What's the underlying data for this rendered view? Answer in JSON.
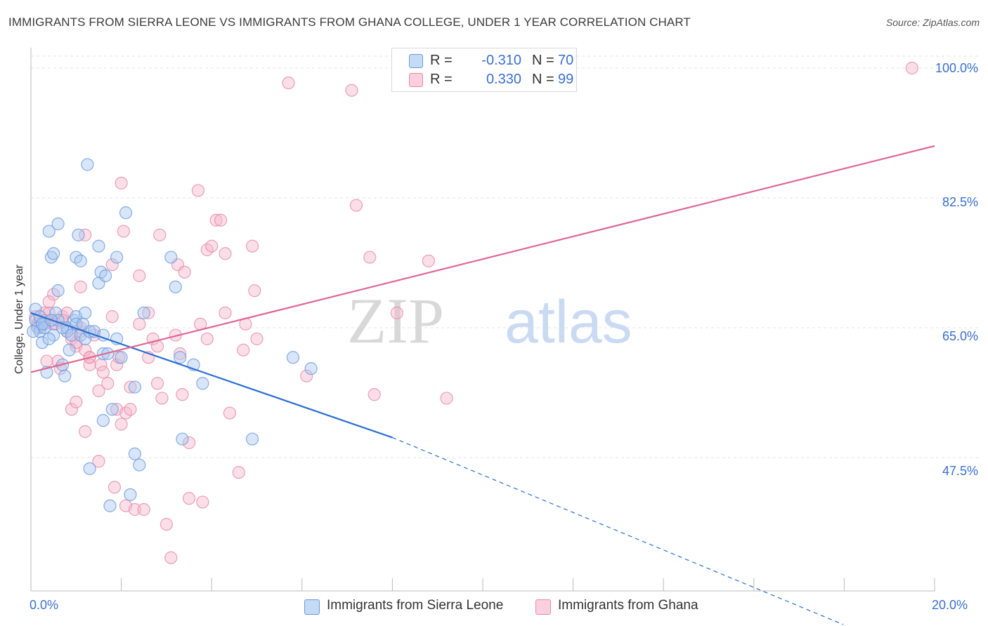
{
  "title": "IMMIGRANTS FROM SIERRA LEONE VS IMMIGRANTS FROM GHANA COLLEGE, UNDER 1 YEAR CORRELATION CHART",
  "source": "Source: ZipAtlas.com",
  "watermark": {
    "zip": "ZIP",
    "atlas": "atlas"
  },
  "legend": {
    "r_label": "R =",
    "n_label": "N =",
    "rows": [
      {
        "r": "-0.310",
        "n": "70",
        "color": "#a8c8f0"
      },
      {
        "r": "0.330",
        "n": "99",
        "color": "#f5b8cc"
      }
    ]
  },
  "chart_data": {
    "type": "scatter",
    "xlabel": "",
    "ylabel": "College, Under 1 year",
    "xlim": [
      0,
      20
    ],
    "ylim": [
      30,
      102
    ],
    "x_tick_labels": [
      "0.0%",
      "20.0%"
    ],
    "y_ticks": [
      47.5,
      65.0,
      82.5,
      100.0
    ],
    "y_tick_labels": [
      "47.5%",
      "65.0%",
      "82.5%",
      "100.0%"
    ],
    "grid": true,
    "series": [
      {
        "name": "Immigrants from Sierra Leone",
        "color": "#6a9be0",
        "fill": "#a8c8f0",
        "line_color": "#2a6fd1",
        "trend": {
          "x0": 0,
          "y0": 67.0,
          "x1": 8.0,
          "y1": 50.2,
          "dash_to_x": 20,
          "dash_to_y": 25.0
        },
        "points": [
          [
            0.1,
            67.5
          ],
          [
            0.1,
            66.0
          ],
          [
            0.15,
            65.0
          ],
          [
            0.2,
            64.5
          ],
          [
            0.25,
            63.0
          ],
          [
            0.3,
            65.5
          ],
          [
            0.35,
            59.0
          ],
          [
            0.4,
            78.0
          ],
          [
            0.45,
            74.5
          ],
          [
            0.5,
            75.0
          ],
          [
            0.5,
            64.0
          ],
          [
            0.55,
            67.0
          ],
          [
            0.6,
            79.0
          ],
          [
            0.6,
            70.0
          ],
          [
            0.7,
            60.0
          ],
          [
            0.75,
            58.5
          ],
          [
            0.8,
            65.0
          ],
          [
            0.8,
            64.5
          ],
          [
            0.85,
            62.0
          ],
          [
            0.9,
            64.0
          ],
          [
            0.95,
            66.0
          ],
          [
            1.0,
            74.5
          ],
          [
            1.0,
            66.5
          ],
          [
            1.0,
            65.5
          ],
          [
            1.05,
            77.5
          ],
          [
            1.1,
            74.0
          ],
          [
            1.1,
            64.0
          ],
          [
            1.2,
            67.0
          ],
          [
            1.2,
            63.5
          ],
          [
            1.25,
            87.0
          ],
          [
            1.3,
            64.5
          ],
          [
            1.3,
            46.0
          ],
          [
            1.4,
            64.5
          ],
          [
            1.5,
            76.0
          ],
          [
            1.5,
            71.0
          ],
          [
            1.55,
            72.5
          ],
          [
            1.6,
            64.0
          ],
          [
            1.6,
            52.5
          ],
          [
            1.6,
            61.5
          ],
          [
            1.65,
            72.0
          ],
          [
            1.7,
            61.5
          ],
          [
            1.75,
            41.0
          ],
          [
            1.8,
            54.0
          ],
          [
            1.9,
            63.5
          ],
          [
            1.9,
            74.5
          ],
          [
            2.0,
            61.0
          ],
          [
            2.1,
            80.5
          ],
          [
            2.2,
            42.5
          ],
          [
            2.3,
            57.0
          ],
          [
            2.3,
            48.0
          ],
          [
            2.4,
            46.5
          ],
          [
            2.5,
            67.0
          ],
          [
            3.1,
            74.5
          ],
          [
            3.2,
            70.5
          ],
          [
            3.3,
            61.0
          ],
          [
            3.35,
            50.0
          ],
          [
            3.6,
            60.0
          ],
          [
            3.8,
            57.5
          ],
          [
            4.9,
            50.0
          ],
          [
            5.8,
            61.0
          ],
          [
            6.2,
            59.5
          ],
          [
            0.2,
            66.5
          ],
          [
            0.3,
            65.0
          ],
          [
            0.4,
            63.5
          ],
          [
            0.6,
            66.0
          ],
          [
            0.7,
            65.0
          ],
          [
            1.15,
            65.5
          ],
          [
            0.05,
            64.5
          ],
          [
            0.25,
            65.5
          ],
          [
            0.45,
            66.0
          ]
        ]
      },
      {
        "name": "Immigrants from Ghana",
        "color": "#e88aa8",
        "fill": "#f5b8cc",
        "line_color": "#e06890",
        "trend": {
          "x0": 0,
          "y0": 59.0,
          "x1": 20,
          "y1": 89.5
        },
        "points": [
          [
            0.1,
            66.5
          ],
          [
            0.15,
            65.5
          ],
          [
            0.2,
            66.0
          ],
          [
            0.3,
            67.0
          ],
          [
            0.35,
            60.5
          ],
          [
            0.4,
            67.0
          ],
          [
            0.45,
            66.0
          ],
          [
            0.5,
            69.5
          ],
          [
            0.6,
            60.5
          ],
          [
            0.65,
            59.5
          ],
          [
            0.7,
            66.5
          ],
          [
            0.8,
            67.0
          ],
          [
            0.9,
            63.5
          ],
          [
            0.9,
            54.0
          ],
          [
            1.0,
            55.0
          ],
          [
            1.0,
            62.5
          ],
          [
            1.1,
            70.5
          ],
          [
            1.1,
            64.5
          ],
          [
            1.2,
            51.0
          ],
          [
            1.2,
            77.5
          ],
          [
            1.3,
            61.0
          ],
          [
            1.3,
            60.0
          ],
          [
            1.4,
            64.0
          ],
          [
            1.5,
            47.0
          ],
          [
            1.5,
            56.5
          ],
          [
            1.55,
            60.0
          ],
          [
            1.6,
            59.0
          ],
          [
            1.7,
            57.5
          ],
          [
            1.8,
            73.5
          ],
          [
            1.8,
            66.5
          ],
          [
            1.85,
            43.5
          ],
          [
            1.9,
            60.0
          ],
          [
            1.9,
            54.0
          ],
          [
            1.95,
            61.0
          ],
          [
            2.0,
            52.0
          ],
          [
            2.0,
            84.5
          ],
          [
            2.05,
            78.0
          ],
          [
            2.1,
            41.0
          ],
          [
            2.1,
            53.5
          ],
          [
            2.2,
            57.0
          ],
          [
            2.2,
            54.0
          ],
          [
            2.3,
            40.5
          ],
          [
            2.4,
            72.0
          ],
          [
            2.4,
            65.5
          ],
          [
            2.5,
            40.5
          ],
          [
            2.6,
            61.0
          ],
          [
            2.7,
            63.5
          ],
          [
            2.8,
            57.5
          ],
          [
            2.85,
            77.5
          ],
          [
            2.9,
            55.5
          ],
          [
            3.0,
            38.5
          ],
          [
            3.1,
            34.0
          ],
          [
            3.2,
            64.0
          ],
          [
            3.25,
            73.5
          ],
          [
            3.3,
            61.5
          ],
          [
            3.35,
            56.0
          ],
          [
            3.4,
            72.5
          ],
          [
            3.5,
            42.0
          ],
          [
            3.5,
            49.5
          ],
          [
            3.7,
            83.5
          ],
          [
            3.75,
            65.5
          ],
          [
            3.8,
            41.5
          ],
          [
            3.9,
            63.5
          ],
          [
            3.9,
            75.5
          ],
          [
            4.0,
            76.0
          ],
          [
            4.1,
            79.5
          ],
          [
            4.2,
            79.5
          ],
          [
            4.3,
            75.0
          ],
          [
            4.3,
            67.0
          ],
          [
            4.4,
            53.5
          ],
          [
            4.6,
            45.5
          ],
          [
            4.7,
            62.0
          ],
          [
            4.75,
            65.5
          ],
          [
            4.9,
            76.0
          ],
          [
            4.95,
            70.0
          ],
          [
            5.0,
            63.5
          ],
          [
            5.7,
            98.0
          ],
          [
            6.1,
            58.5
          ],
          [
            7.1,
            97.0
          ],
          [
            7.2,
            81.5
          ],
          [
            7.5,
            74.5
          ],
          [
            7.6,
            56.0
          ],
          [
            8.1,
            67.0
          ],
          [
            8.8,
            74.0
          ],
          [
            9.2,
            55.5
          ],
          [
            19.5,
            100.0
          ],
          [
            0.2,
            65.0
          ],
          [
            0.3,
            66.0
          ],
          [
            0.5,
            65.5
          ],
          [
            0.7,
            66.0
          ],
          [
            0.8,
            64.5
          ],
          [
            1.0,
            63.0
          ],
          [
            1.1,
            65.0
          ],
          [
            1.2,
            62.0
          ],
          [
            1.3,
            61.0
          ],
          [
            2.6,
            67.0
          ],
          [
            2.8,
            62.5
          ],
          [
            0.4,
            68.5
          ],
          [
            0.55,
            65.5
          ]
        ]
      }
    ]
  }
}
